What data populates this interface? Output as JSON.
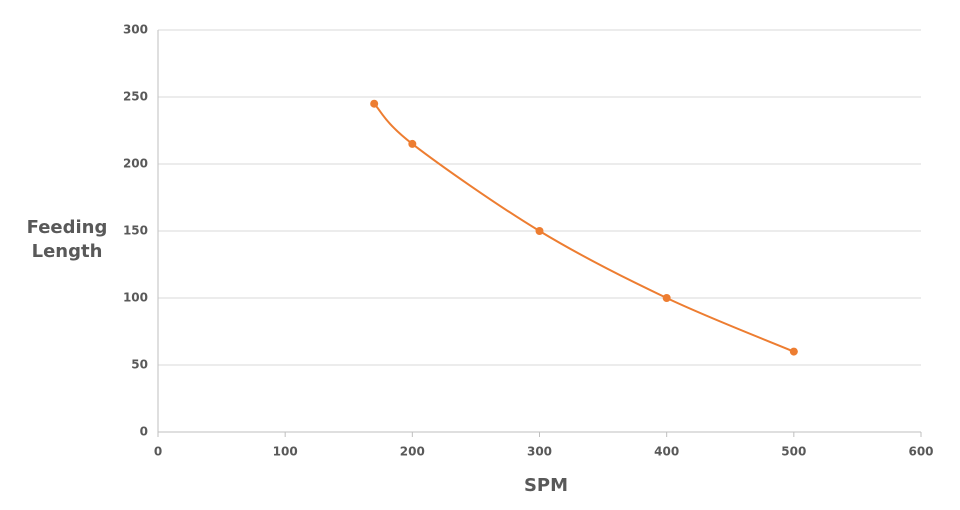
{
  "chart_data": {
    "type": "line",
    "x": [
      170,
      200,
      300,
      400,
      500
    ],
    "series": [
      {
        "name": null,
        "color": "#ed7d31",
        "values": [
          245,
          215,
          150,
          100,
          60
        ]
      }
    ],
    "xlabel": "SPM",
    "ylabel": "Feeding Length",
    "xlim": [
      0,
      600
    ],
    "xticks": [
      0,
      100,
      200,
      300,
      400,
      500,
      600
    ],
    "ylim": [
      0,
      300
    ],
    "yticks": [
      0,
      50,
      100,
      150,
      200,
      250,
      300
    ],
    "grid": true,
    "smooth": true,
    "markers": true
  }
}
